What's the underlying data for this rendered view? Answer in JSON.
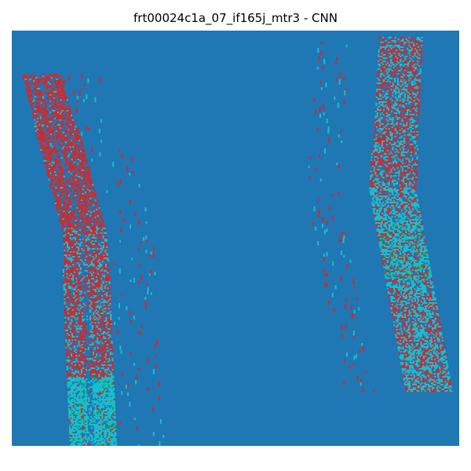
{
  "figure": {
    "title": "frt00024c1a_07_if165j_mtr3 - CNN"
  },
  "colors": {
    "background": "#1f77b4",
    "class_cyan": "#17becf",
    "class_red": "#d62728",
    "class_green": "#2ca02c"
  }
}
